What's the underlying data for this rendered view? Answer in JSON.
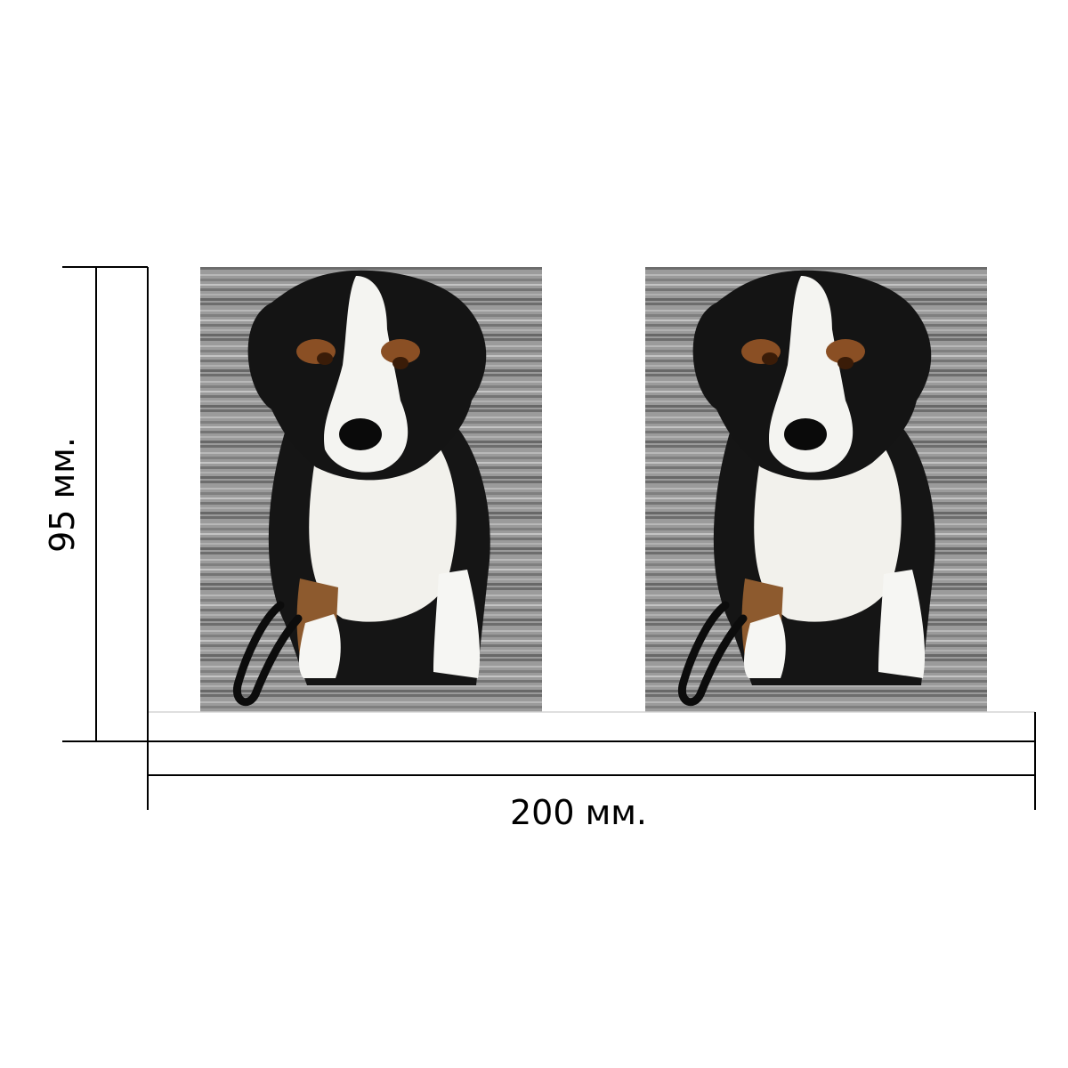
{
  "dimensions": {
    "width_label": "200 мм.",
    "height_label": "95 мм."
  },
  "photos": [
    {
      "subject": "dog-photo-left",
      "description_icon": "dog-photo"
    },
    {
      "subject": "dog-photo-right",
      "description_icon": "dog-photo"
    }
  ],
  "colors": {
    "line": "#000000",
    "board_light": "#a3a3a3",
    "board_dark": "#6f6f6f",
    "fur_black": "#141414",
    "fur_white": "#f4f4f1",
    "fur_tan": "#9a5a2c"
  }
}
